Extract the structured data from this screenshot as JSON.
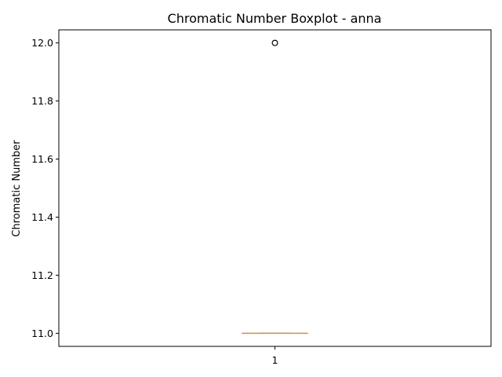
{
  "chart_data": {
    "type": "boxplot",
    "title": "Chromatic Number Boxplot - anna",
    "xlabel": "",
    "ylabel": "Chromatic Number",
    "categories": [
      "1"
    ],
    "ylim": [
      10.955,
      12.045
    ],
    "yticks": [
      11.0,
      11.2,
      11.4,
      11.6,
      11.8,
      12.0
    ],
    "ytick_labels": [
      "11.0",
      "11.2",
      "11.4",
      "11.6",
      "11.8",
      "12.0"
    ],
    "grid": false,
    "boxes": [
      {
        "category": "1",
        "whisker_low": 11.0,
        "q1": 11.0,
        "median": 11.0,
        "q3": 11.0,
        "whisker_high": 11.0,
        "outliers": [
          12.0
        ]
      }
    ]
  },
  "colors": {
    "box": "#000000",
    "median": "#e0934a",
    "outlier_edge": "#000000",
    "axes": "#000000",
    "background": "#ffffff"
  }
}
